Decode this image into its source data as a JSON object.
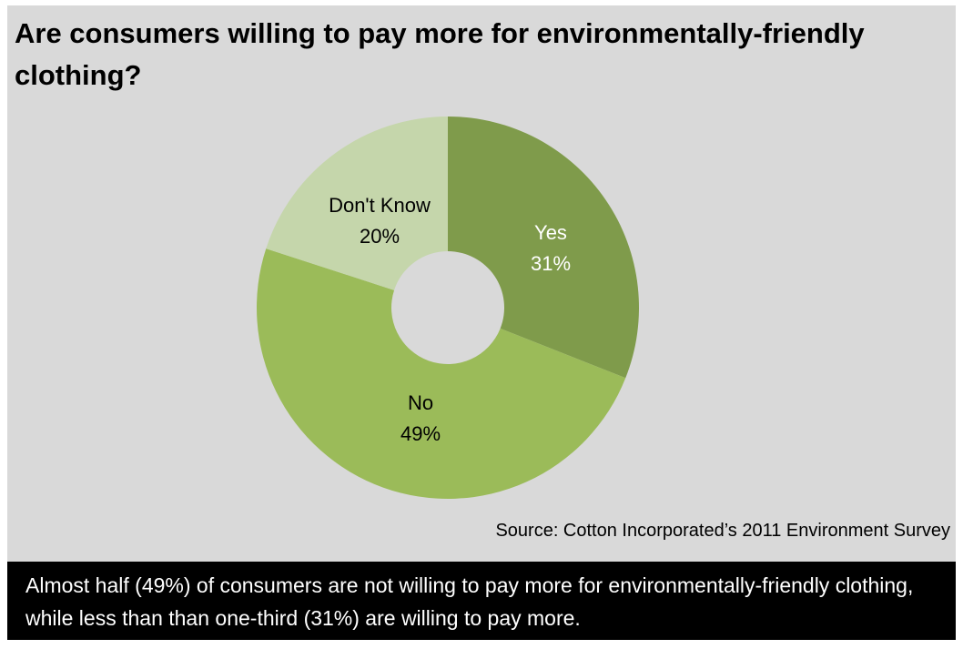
{
  "chart_data": {
    "type": "pie",
    "donut": true,
    "title": "Are consumers willing to pay more for environmentally-friendly clothing?",
    "categories": [
      "Yes",
      "No",
      "Don't Know"
    ],
    "values": [
      31,
      49,
      20
    ],
    "labels": [
      "31%",
      "49%",
      "20%"
    ],
    "colors": [
      "#7f9b4b",
      "#9bbb59",
      "#c5d6ab"
    ],
    "label_colors": [
      "#ffffff",
      "#000000",
      "#000000"
    ]
  },
  "source": "Source: Cotton Incorporated’s 2011 Environment Survey",
  "caption": "Almost half (49%) of consumers are not willing to pay more for environmentally-friendly clothing, while less than than one-third (31%) are willing to pay more.",
  "colors": {
    "background": "#d9d9d9",
    "caption_bg": "#000000"
  }
}
